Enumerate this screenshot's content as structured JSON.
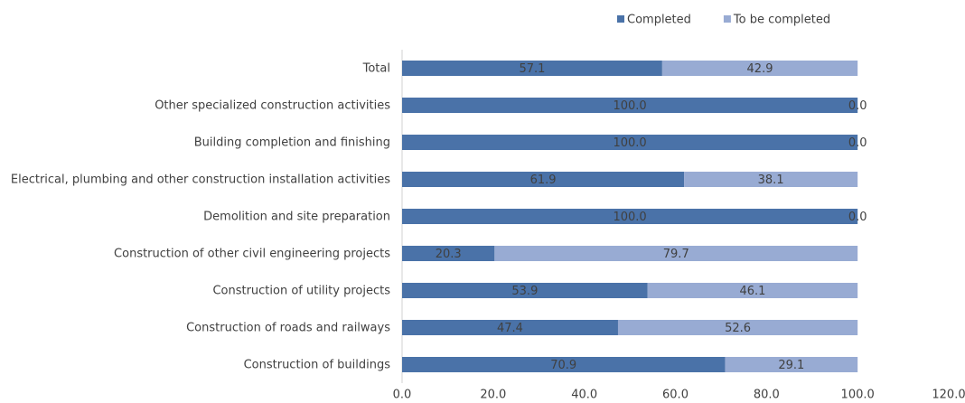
{
  "chart_data": {
    "type": "stacked_barh",
    "categories": [
      "Total",
      "Other specialized construction activities",
      "Building completion and finishing",
      "Electrical, plumbing and other construction installation activities",
      "Demolition and site preparation",
      "Construction of other civil engineering projects",
      "Construction of utility projects",
      "Construction of roads and railways",
      "Construction of buildings"
    ],
    "series": [
      {
        "name": "Completed",
        "color": "#4a72a8",
        "values": [
          57.1,
          100,
          100,
          61.9,
          100,
          20.3,
          53.9,
          47.4,
          70.9
        ],
        "value_labels": [
          "57.1",
          "100.0",
          "100.0",
          "61.9",
          "100.0",
          "20.3",
          "53.9",
          "47.4",
          "70.9"
        ]
      },
      {
        "name": "To be completed",
        "color": "#98abd3",
        "values": [
          42.9,
          0,
          0,
          38.1,
          0,
          79.7,
          46.1,
          52.6,
          29.1
        ],
        "value_labels": [
          "42.9",
          "0.0",
          "0.0",
          "38.1",
          "0.0",
          "79.7",
          "46.1",
          "52.6",
          "29.1"
        ]
      }
    ],
    "xlim": [
      0,
      120
    ],
    "xticks": [
      {
        "value": 0,
        "label": "0.0"
      },
      {
        "value": 20,
        "label": "20.0"
      },
      {
        "value": 40,
        "label": "40.0"
      },
      {
        "value": 60,
        "label": "60.0"
      },
      {
        "value": 80,
        "label": "80.0"
      },
      {
        "value": 100,
        "label": "100.0"
      },
      {
        "value": 120,
        "label": "120.0"
      }
    ],
    "legend": "top-right"
  }
}
